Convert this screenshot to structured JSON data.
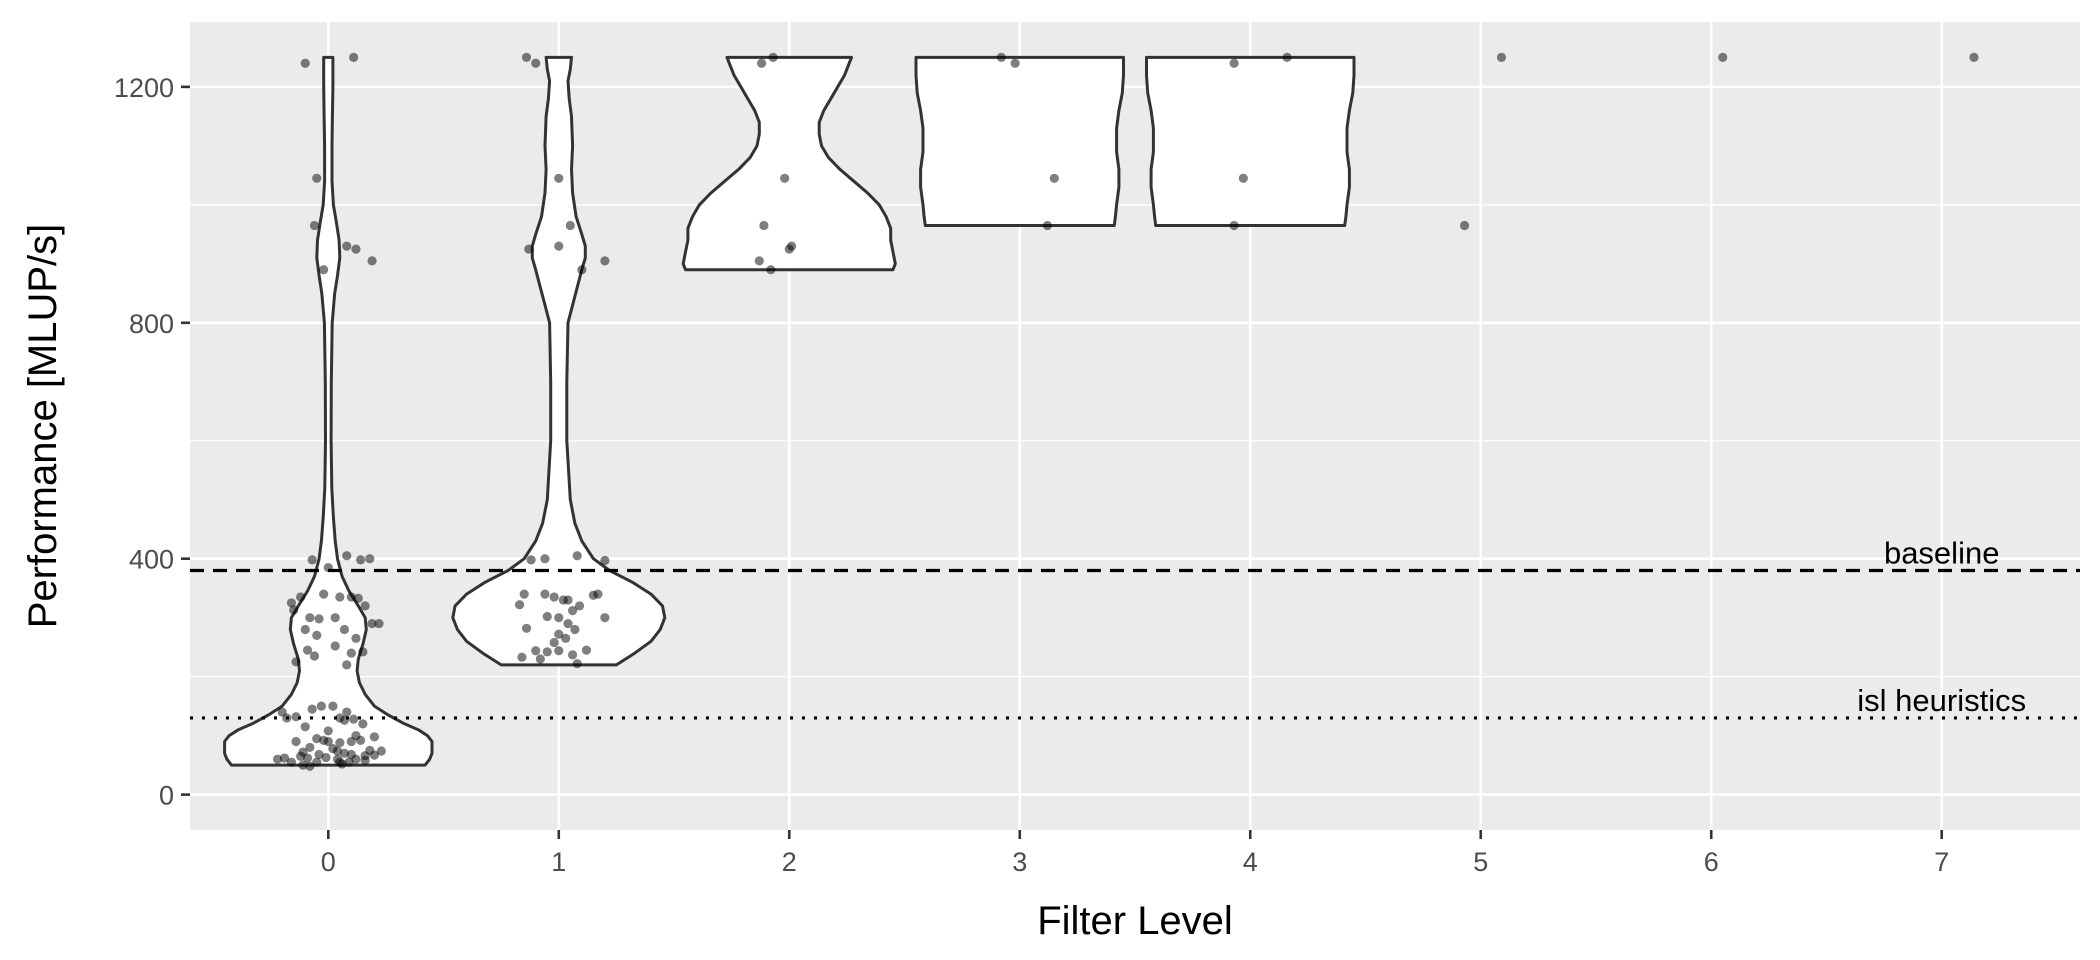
{
  "chart_data": {
    "type": "violin",
    "xlabel": "Filter Level",
    "ylabel": "Performance [MLUP/s]",
    "x_ticks": [
      "0",
      "1",
      "2",
      "3",
      "4",
      "5",
      "6",
      "7"
    ],
    "y_ticks": [
      0,
      400,
      800,
      1200
    ],
    "xlim": [
      -0.6,
      7.6
    ],
    "ylim": [
      -60,
      1310
    ],
    "grid": true,
    "legend": "none",
    "colors": {
      "panel": "#ebebeb",
      "grid": "#ffffff",
      "violin_fill": "#ffffff",
      "violin_stroke": "#333333",
      "point": "#000000"
    },
    "reference_lines": [
      {
        "label": "baseline",
        "y": 380,
        "style": "dashed"
      },
      {
        "label": "isl heuristics",
        "y": 130,
        "style": "dotted"
      }
    ],
    "violins": [
      {
        "x": 0,
        "profile": [
          [
            50,
            0.42
          ],
          [
            60,
            0.44
          ],
          [
            70,
            0.45
          ],
          [
            80,
            0.45
          ],
          [
            90,
            0.45
          ],
          [
            100,
            0.43
          ],
          [
            110,
            0.39
          ],
          [
            120,
            0.33
          ],
          [
            135,
            0.26
          ],
          [
            150,
            0.2
          ],
          [
            170,
            0.16
          ],
          [
            190,
            0.135
          ],
          [
            210,
            0.125
          ],
          [
            230,
            0.13
          ],
          [
            255,
            0.15
          ],
          [
            280,
            0.165
          ],
          [
            300,
            0.16
          ],
          [
            320,
            0.13
          ],
          [
            345,
            0.09
          ],
          [
            370,
            0.06
          ],
          [
            400,
            0.04
          ],
          [
            430,
            0.03
          ],
          [
            470,
            0.022
          ],
          [
            520,
            0.015
          ],
          [
            600,
            0.012
          ],
          [
            700,
            0.013
          ],
          [
            800,
            0.017
          ],
          [
            850,
            0.028
          ],
          [
            880,
            0.04
          ],
          [
            910,
            0.05
          ],
          [
            940,
            0.047
          ],
          [
            970,
            0.035
          ],
          [
            1000,
            0.022
          ],
          [
            1040,
            0.016
          ],
          [
            1100,
            0.016
          ],
          [
            1150,
            0.018
          ],
          [
            1200,
            0.02
          ],
          [
            1240,
            0.02
          ],
          [
            1250,
            0.02
          ]
        ]
      },
      {
        "x": 1,
        "profile": [
          [
            220,
            0.25
          ],
          [
            240,
            0.33
          ],
          [
            260,
            0.4
          ],
          [
            280,
            0.44
          ],
          [
            300,
            0.46
          ],
          [
            320,
            0.45
          ],
          [
            340,
            0.4
          ],
          [
            360,
            0.32
          ],
          [
            380,
            0.22
          ],
          [
            400,
            0.15
          ],
          [
            430,
            0.1
          ],
          [
            460,
            0.07
          ],
          [
            500,
            0.05
          ],
          [
            600,
            0.035
          ],
          [
            700,
            0.035
          ],
          [
            800,
            0.04
          ],
          [
            830,
            0.06
          ],
          [
            860,
            0.08
          ],
          [
            890,
            0.1
          ],
          [
            910,
            0.115
          ],
          [
            930,
            0.115
          ],
          [
            950,
            0.1
          ],
          [
            980,
            0.075
          ],
          [
            1020,
            0.06
          ],
          [
            1060,
            0.055
          ],
          [
            1100,
            0.06
          ],
          [
            1150,
            0.055
          ],
          [
            1180,
            0.045
          ],
          [
            1210,
            0.04
          ],
          [
            1230,
            0.05
          ],
          [
            1250,
            0.055
          ]
        ]
      },
      {
        "x": 2,
        "profile": [
          [
            890,
            0.45
          ],
          [
            900,
            0.46
          ],
          [
            920,
            0.45
          ],
          [
            940,
            0.44
          ],
          [
            960,
            0.44
          ],
          [
            980,
            0.42
          ],
          [
            1000,
            0.39
          ],
          [
            1020,
            0.34
          ],
          [
            1040,
            0.28
          ],
          [
            1060,
            0.22
          ],
          [
            1080,
            0.17
          ],
          [
            1100,
            0.14
          ],
          [
            1120,
            0.13
          ],
          [
            1140,
            0.13
          ],
          [
            1160,
            0.15
          ],
          [
            1180,
            0.18
          ],
          [
            1200,
            0.21
          ],
          [
            1220,
            0.24
          ],
          [
            1240,
            0.26
          ],
          [
            1250,
            0.27
          ]
        ]
      },
      {
        "x": 3,
        "profile": [
          [
            965,
            0.41
          ],
          [
            980,
            0.415
          ],
          [
            1000,
            0.42
          ],
          [
            1030,
            0.43
          ],
          [
            1060,
            0.43
          ],
          [
            1090,
            0.42
          ],
          [
            1110,
            0.42
          ],
          [
            1130,
            0.42
          ],
          [
            1160,
            0.43
          ],
          [
            1190,
            0.445
          ],
          [
            1220,
            0.45
          ],
          [
            1250,
            0.45
          ]
        ]
      },
      {
        "x": 4,
        "profile": [
          [
            965,
            0.41
          ],
          [
            980,
            0.415
          ],
          [
            1000,
            0.42
          ],
          [
            1030,
            0.43
          ],
          [
            1060,
            0.43
          ],
          [
            1090,
            0.42
          ],
          [
            1110,
            0.42
          ],
          [
            1130,
            0.42
          ],
          [
            1160,
            0.43
          ],
          [
            1190,
            0.445
          ],
          [
            1220,
            0.45
          ],
          [
            1250,
            0.45
          ]
        ]
      }
    ],
    "points": [
      [
        -0.1,
        1240
      ],
      [
        0.11,
        1250
      ],
      [
        -0.05,
        1045
      ],
      [
        -0.06,
        965
      ],
      [
        0.08,
        930
      ],
      [
        0.12,
        925
      ],
      [
        -0.02,
        890
      ],
      [
        0.19,
        905
      ],
      [
        0.08,
        405
      ],
      [
        0.14,
        398
      ],
      [
        0.18,
        400
      ],
      [
        -0.07,
        398
      ],
      [
        0.0,
        385
      ],
      [
        -0.02,
        340
      ],
      [
        -0.12,
        335
      ],
      [
        0.05,
        335
      ],
      [
        0.1,
        335
      ],
      [
        0.13,
        333
      ],
      [
        -0.16,
        325
      ],
      [
        0.16,
        320
      ],
      [
        -0.15,
        313
      ],
      [
        -0.08,
        300
      ],
      [
        -0.04,
        298
      ],
      [
        0.03,
        300
      ],
      [
        0.19,
        290
      ],
      [
        0.22,
        290
      ],
      [
        -0.1,
        280
      ],
      [
        0.07,
        280
      ],
      [
        -0.05,
        270
      ],
      [
        0.12,
        265
      ],
      [
        0.03,
        252
      ],
      [
        -0.09,
        245
      ],
      [
        0.15,
        242
      ],
      [
        0.1,
        240
      ],
      [
        -0.06,
        235
      ],
      [
        -0.14,
        225
      ],
      [
        0.08,
        220
      ],
      [
        -0.03,
        150
      ],
      [
        0.02,
        150
      ],
      [
        -0.07,
        145
      ],
      [
        -0.2,
        140
      ],
      [
        0.08,
        140
      ],
      [
        -0.14,
        132
      ],
      [
        -0.18,
        130
      ],
      [
        0.05,
        130
      ],
      [
        0.11,
        128
      ],
      [
        0.07,
        126
      ],
      [
        0.15,
        120
      ],
      [
        -0.1,
        115
      ],
      [
        0.0,
        108
      ],
      [
        0.12,
        100
      ],
      [
        0.2,
        98
      ],
      [
        -0.05,
        95
      ],
      [
        -0.02,
        92
      ],
      [
        0.0,
        90
      ],
      [
        0.14,
        92
      ],
      [
        0.1,
        90
      ],
      [
        -0.14,
        90
      ],
      [
        0.05,
        88
      ],
      [
        -0.08,
        80
      ],
      [
        0.02,
        78
      ],
      [
        0.18,
        75
      ],
      [
        0.07,
        70
      ],
      [
        -0.04,
        68
      ],
      [
        0.1,
        68
      ],
      [
        0.2,
        67
      ],
      [
        -0.12,
        65
      ],
      [
        -0.19,
        62
      ],
      [
        -0.09,
        62
      ],
      [
        -0.01,
        63
      ],
      [
        0.04,
        60
      ],
      [
        0.12,
        60
      ],
      [
        0.16,
        58
      ],
      [
        -0.16,
        55
      ],
      [
        -0.05,
        55
      ],
      [
        0.05,
        55
      ],
      [
        -0.11,
        50
      ],
      [
        -0.08,
        48
      ],
      [
        0.06,
        52
      ],
      [
        0.09,
        55
      ],
      [
        -0.22,
        60
      ],
      [
        0.16,
        66
      ],
      [
        0.04,
        74
      ],
      [
        -0.11,
        72
      ],
      [
        0.23,
        74
      ],
      [
        0.86,
        1250
      ],
      [
        0.9,
        1240
      ],
      [
        1.0,
        1045
      ],
      [
        1.05,
        965
      ],
      [
        1.0,
        930
      ],
      [
        0.87,
        925
      ],
      [
        1.1,
        890
      ],
      [
        1.2,
        905
      ],
      [
        0.88,
        398
      ],
      [
        0.94,
        400
      ],
      [
        1.08,
        405
      ],
      [
        1.2,
        397
      ],
      [
        0.85,
        340
      ],
      [
        0.94,
        340
      ],
      [
        0.98,
        335
      ],
      [
        1.02,
        330
      ],
      [
        1.04,
        330
      ],
      [
        1.09,
        320
      ],
      [
        1.15,
        338
      ],
      [
        1.17,
        340
      ],
      [
        0.83,
        322
      ],
      [
        1.06,
        312
      ],
      [
        0.95,
        302
      ],
      [
        1.0,
        300
      ],
      [
        1.04,
        290
      ],
      [
        1.2,
        300
      ],
      [
        1.07,
        280
      ],
      [
        1.0,
        272
      ],
      [
        0.86,
        282
      ],
      [
        1.03,
        265
      ],
      [
        0.98,
        258
      ],
      [
        1.12,
        245
      ],
      [
        0.9,
        244
      ],
      [
        0.95,
        242
      ],
      [
        1.0,
        244
      ],
      [
        1.06,
        237
      ],
      [
        0.84,
        233
      ],
      [
        0.92,
        230
      ],
      [
        1.08,
        222
      ],
      [
        1.88,
        1240
      ],
      [
        1.93,
        1250
      ],
      [
        1.98,
        1045
      ],
      [
        1.89,
        965
      ],
      [
        2.01,
        930
      ],
      [
        2.0,
        925
      ],
      [
        1.87,
        905
      ],
      [
        1.92,
        890
      ],
      [
        2.92,
        1250
      ],
      [
        2.98,
        1240
      ],
      [
        3.15,
        1045
      ],
      [
        3.12,
        965
      ],
      [
        3.93,
        1240
      ],
      [
        4.16,
        1250
      ],
      [
        3.97,
        1045
      ],
      [
        3.93,
        965
      ],
      [
        5.09,
        1250
      ],
      [
        4.93,
        965
      ],
      [
        6.05,
        1250
      ],
      [
        7.14,
        1250
      ]
    ]
  }
}
